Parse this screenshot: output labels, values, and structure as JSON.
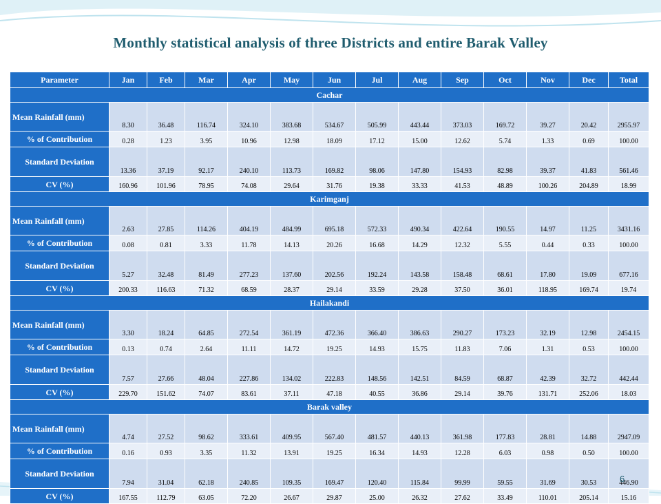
{
  "slide": {
    "title": "Monthly statistical analysis of three Districts and entire Barak Valley",
    "page_number": "6"
  },
  "table": {
    "headers": [
      "Parameter",
      "Jan",
      "Feb",
      "Mar",
      "Apr",
      "May",
      "Jun",
      "Jul",
      "Aug",
      "Sep",
      "Oct",
      "Nov",
      "Dec",
      "Total"
    ],
    "sections": [
      {
        "district": "Cachar",
        "rows": [
          {
            "label": "Mean Rainfall (mm)",
            "values": [
              "8.30",
              "36.48",
              "116.74",
              "324.10",
              "383.68",
              "534.67",
              "505.99",
              "443.44",
              "373.03",
              "169.72",
              "39.27",
              "20.42",
              "2955.97"
            ]
          },
          {
            "label": "% of Contribution",
            "values": [
              "0.28",
              "1.23",
              "3.95",
              "10.96",
              "12.98",
              "18.09",
              "17.12",
              "15.00",
              "12.62",
              "5.74",
              "1.33",
              "0.69",
              "100.00"
            ]
          },
          {
            "label": "Standard Deviation",
            "values": [
              "13.36",
              "37.19",
              "92.17",
              "240.10",
              "113.73",
              "169.82",
              "98.06",
              "147.80",
              "154.93",
              "82.98",
              "39.37",
              "41.83",
              "561.46"
            ]
          },
          {
            "label": "CV (%)",
            "values": [
              "160.96",
              "101.96",
              "78.95",
              "74.08",
              "29.64",
              "31.76",
              "19.38",
              "33.33",
              "41.53",
              "48.89",
              "100.26",
              "204.89",
              "18.99"
            ]
          }
        ]
      },
      {
        "district": "Karimganj",
        "rows": [
          {
            "label": "Mean Rainfall (mm)",
            "values": [
              "2.63",
              "27.85",
              "114.26",
              "404.19",
              "484.99",
              "695.18",
              "572.33",
              "490.34",
              "422.64",
              "190.55",
              "14.97",
              "11.25",
              "3431.16"
            ]
          },
          {
            "label": "% of Contribution",
            "values": [
              "0.08",
              "0.81",
              "3.33",
              "11.78",
              "14.13",
              "20.26",
              "16.68",
              "14.29",
              "12.32",
              "5.55",
              "0.44",
              "0.33",
              "100.00"
            ]
          },
          {
            "label": "Standard Deviation",
            "values": [
              "5.27",
              "32.48",
              "81.49",
              "277.23",
              "137.60",
              "202.56",
              "192.24",
              "143.58",
              "158.48",
              "68.61",
              "17.80",
              "19.09",
              "677.16"
            ]
          },
          {
            "label": "CV (%)",
            "values": [
              "200.33",
              "116.63",
              "71.32",
              "68.59",
              "28.37",
              "29.14",
              "33.59",
              "29.28",
              "37.50",
              "36.01",
              "118.95",
              "169.74",
              "19.74"
            ]
          }
        ]
      },
      {
        "district": "Hailakandi",
        "rows": [
          {
            "label": "Mean Rainfall (mm)",
            "values": [
              "3.30",
              "18.24",
              "64.85",
              "272.54",
              "361.19",
              "472.36",
              "366.40",
              "386.63",
              "290.27",
              "173.23",
              "32.19",
              "12.98",
              "2454.15"
            ]
          },
          {
            "label": "% of Contribution",
            "values": [
              "0.13",
              "0.74",
              "2.64",
              "11.11",
              "14.72",
              "19.25",
              "14.93",
              "15.75",
              "11.83",
              "7.06",
              "1.31",
              "0.53",
              "100.00"
            ]
          },
          {
            "label": "Standard Deviation",
            "values": [
              "7.57",
              "27.66",
              "48.04",
              "227.86",
              "134.02",
              "222.83",
              "148.56",
              "142.51",
              "84.59",
              "68.87",
              "42.39",
              "32.72",
              "442.44"
            ]
          },
          {
            "label": "CV (%)",
            "values": [
              "229.70",
              "151.62",
              "74.07",
              "83.61",
              "37.11",
              "47.18",
              "40.55",
              "36.86",
              "29.14",
              "39.76",
              "131.71",
              "252.06",
              "18.03"
            ]
          }
        ]
      },
      {
        "district": "Barak valley",
        "rows": [
          {
            "label": "Mean Rainfall (mm)",
            "values": [
              "4.74",
              "27.52",
              "98.62",
              "333.61",
              "409.95",
              "567.40",
              "481.57",
              "440.13",
              "361.98",
              "177.83",
              "28.81",
              "14.88",
              "2947.09"
            ]
          },
          {
            "label": "% of Contribution",
            "values": [
              "0.16",
              "0.93",
              "3.35",
              "11.32",
              "13.91",
              "19.25",
              "16.34",
              "14.93",
              "12.28",
              "6.03",
              "0.98",
              "0.50",
              "100.00"
            ]
          },
          {
            "label": "Standard Deviation",
            "values": [
              "7.94",
              "31.04",
              "62.18",
              "240.85",
              "109.35",
              "169.47",
              "120.40",
              "115.84",
              "99.99",
              "59.55",
              "31.69",
              "30.53",
              "446.90"
            ]
          },
          {
            "label": "CV (%)",
            "values": [
              "167.55",
              "112.79",
              "63.05",
              "72.20",
              "26.67",
              "29.87",
              "25.00",
              "26.32",
              "27.62",
              "33.49",
              "110.01",
              "205.14",
              "15.16"
            ]
          }
        ]
      }
    ]
  },
  "colors": {
    "header_blue": "#1f6fc8",
    "band_dark": "#cfdcef",
    "band_light": "#e9eff8",
    "title_teal": "#1f5c6e",
    "swoosh": "#bfe3ee"
  }
}
